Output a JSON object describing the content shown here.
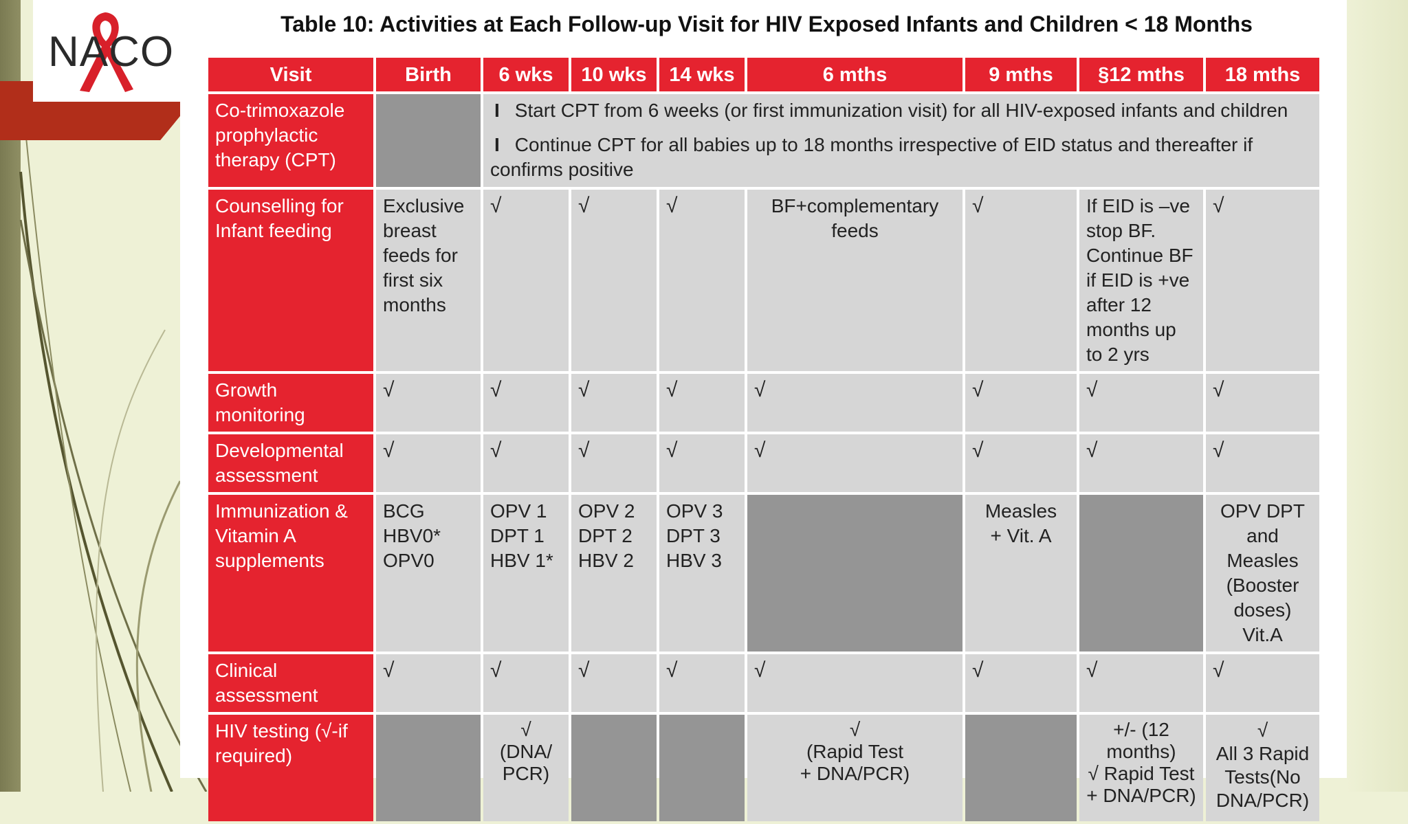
{
  "logo": {
    "text": "NACO"
  },
  "title": "Table 10: Activities at Each Follow-up Visit for HIV Exposed Infants and Children < 18 Months",
  "table": {
    "headers": [
      "Visit",
      "Birth",
      "6 wks",
      "10 wks",
      "14 wks",
      "6 mths",
      "9 mths",
      "§12 mths",
      "18 mths"
    ],
    "check": "√",
    "bullet": "I",
    "cpt": {
      "label": "Co-trimoxazole prophylactic therapy (CPT)",
      "line1": "Start CPT from 6 weeks (or first immunization visit) for all HIV-exposed  infants and children",
      "line2": "Continue  CPT for all babies up to 18 months irrespective of EID status and thereafter if confirms positive"
    },
    "counselling": {
      "label": "Counselling for Infant feeding",
      "birth": "Exclusive breast feeds for first six months",
      "m6": "BF+complementary feeds",
      "m12": "If EID is –ve stop BF. Continue BF if EID is +ve after 12 months up to 2 yrs"
    },
    "growth": {
      "label": "Growth monitoring"
    },
    "development": {
      "label": "Developmental assessment"
    },
    "immunization": {
      "label": "Immunization & Vitamin A supplements",
      "birth": "BCG\nHBV0*\nOPV0",
      "w6": "OPV 1\nDPT 1\nHBV 1*",
      "w10": "OPV 2\nDPT 2\nHBV 2",
      "w14": "OPV 3\nDPT 3\nHBV 3",
      "m9": "Measles\n+ Vit. A",
      "m18": "OPV DPT and Measles (Booster doses) Vit.A"
    },
    "clinical": {
      "label": "Clinical assessment"
    },
    "hiv": {
      "label": "HIV testing (√-if required)",
      "w6": "√\n(DNA/\nPCR)",
      "m6": "√\n(Rapid Test\n+ DNA/PCR)",
      "m12": "+/- (12\nmonths)\n√ Rapid Test\n+ DNA/PCR)",
      "m18": "√\nAll 3 Rapid Tests(No DNA/PCR)"
    }
  }
}
